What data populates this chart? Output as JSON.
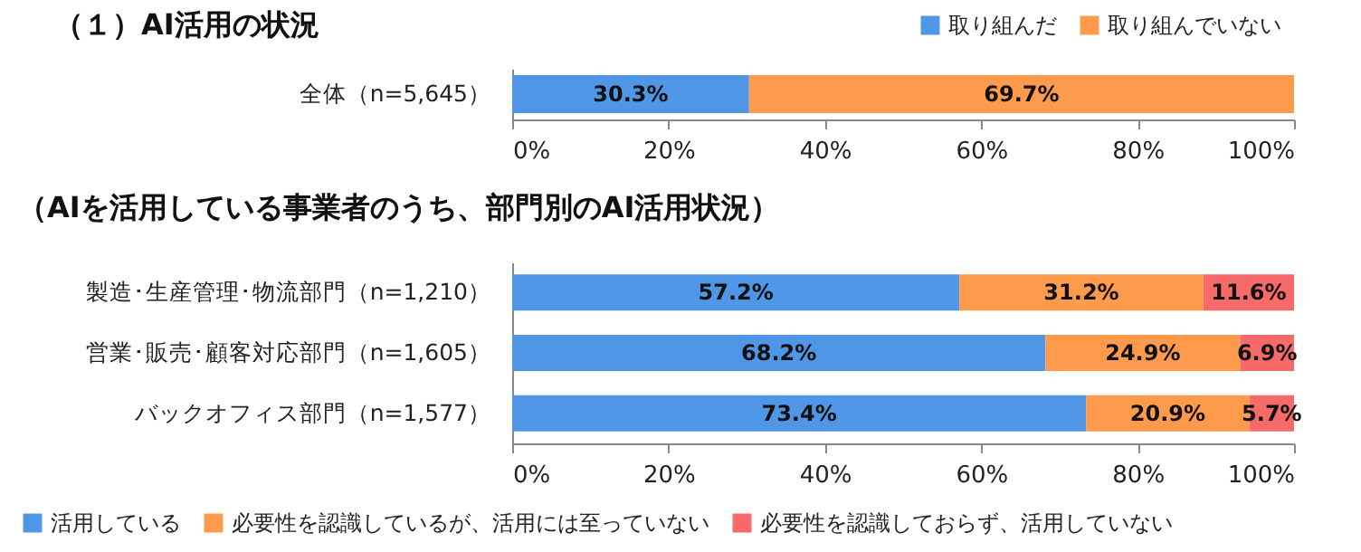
{
  "chart_data": [
    {
      "type": "bar",
      "orientation": "horizontal",
      "stacked": true,
      "title": "（１）AI活用の状況",
      "legend": "top right",
      "categories": [
        "全体（n=5,645）"
      ],
      "series": [
        {
          "name": "取り組んだ",
          "color": "#5096e6",
          "values": [
            30.3
          ],
          "value_labels": [
            "30.3%"
          ]
        },
        {
          "name": "取り組んでいない",
          "color": "#fd9a4c",
          "values": [
            69.7
          ],
          "value_labels": [
            "69.7%"
          ]
        }
      ],
      "xlim": [
        0,
        100
      ],
      "xticks": [
        {
          "value": 0,
          "label": "0%"
        },
        {
          "value": 20,
          "label": "20%"
        },
        {
          "value": 40,
          "label": "40%"
        },
        {
          "value": 60,
          "label": "60%"
        },
        {
          "value": 80,
          "label": "80%"
        },
        {
          "value": 100,
          "label": "100%"
        }
      ]
    },
    {
      "type": "bar",
      "orientation": "horizontal",
      "stacked": true,
      "title": "（AIを活用している事業者のうち、部門別のAI活用状況）",
      "legend": "bottom",
      "categories": [
        "製造･生産管理･物流部門（n=1,210）",
        "営業･販売･顧客対応部門（n=1,605）",
        "バックオフィス部門（n=1,577）"
      ],
      "series": [
        {
          "name": "活用している",
          "color": "#5096e6",
          "values": [
            57.2,
            68.2,
            73.4
          ],
          "value_labels": [
            "57.2%",
            "68.2%",
            "73.4%"
          ]
        },
        {
          "name": "必要性を認識しているが、活用には至っていない",
          "color": "#fd9a4c",
          "values": [
            31.2,
            24.9,
            20.9
          ],
          "value_labels": [
            "31.2%",
            "24.9%",
            "20.9%"
          ]
        },
        {
          "name": "必要性を認識しておらず、活用していない",
          "color": "#f66a6a",
          "values": [
            11.6,
            6.9,
            5.7
          ],
          "value_labels": [
            "11.6%",
            "6.9%",
            "5.7%"
          ]
        }
      ],
      "xlim": [
        0,
        100
      ],
      "xticks": [
        {
          "value": 0,
          "label": "0%"
        },
        {
          "value": 20,
          "label": "20%"
        },
        {
          "value": 40,
          "label": "40%"
        },
        {
          "value": 60,
          "label": "60%"
        },
        {
          "value": 80,
          "label": "80%"
        },
        {
          "value": 100,
          "label": "100%"
        }
      ]
    }
  ]
}
